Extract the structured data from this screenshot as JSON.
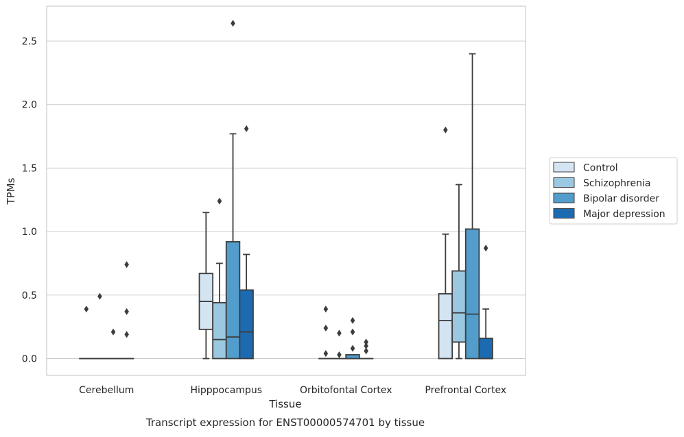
{
  "caption": "Transcript expression for ENST00000574701 by tissue",
  "chart_data": {
    "type": "box",
    "xlabel": "Tissue",
    "ylabel": "TPMs",
    "ylim": [
      -0.13,
      2.78
    ],
    "yticks": [
      0.0,
      0.5,
      1.0,
      1.5,
      2.0,
      2.5
    ],
    "ytick_labels": [
      "0.0",
      "0.5",
      "1.0",
      "1.5",
      "2.0",
      "2.5"
    ],
    "grid": "horizontal",
    "legend_position": "right",
    "categories": [
      "Cerebellum",
      "Hipppocampus",
      "Orbitofontal Cortex",
      "Prefrontal Cortex"
    ],
    "series": [
      {
        "name": "Control",
        "color": "#d3e4f3",
        "boxes": [
          {
            "whislo": 0.0,
            "q1": 0.0,
            "med": 0.0,
            "q3": 0.0,
            "whishi": 0.0,
            "fliers": [
              0.39
            ]
          },
          {
            "whislo": 0.0,
            "q1": 0.23,
            "med": 0.45,
            "q3": 0.67,
            "whishi": 1.15,
            "fliers": []
          },
          {
            "whislo": 0.0,
            "q1": 0.0,
            "med": 0.0,
            "q3": 0.0,
            "whishi": 0.0,
            "fliers": [
              0.39,
              0.24,
              0.04
            ]
          },
          {
            "whislo": 0.0,
            "q1": 0.0,
            "med": 0.3,
            "q3": 0.51,
            "whishi": 0.98,
            "fliers": [
              1.8
            ]
          }
        ]
      },
      {
        "name": "Schizophrenia",
        "color": "#9ac8e0",
        "boxes": [
          {
            "whislo": 0.0,
            "q1": 0.0,
            "med": 0.0,
            "q3": 0.0,
            "whishi": 0.0,
            "fliers": [
              0.49
            ]
          },
          {
            "whislo": 0.0,
            "q1": 0.0,
            "med": 0.15,
            "q3": 0.44,
            "whishi": 0.75,
            "fliers": [
              1.24
            ]
          },
          {
            "whislo": 0.0,
            "q1": 0.0,
            "med": 0.0,
            "q3": 0.0,
            "whishi": 0.0,
            "fliers": [
              0.2,
              0.03
            ]
          },
          {
            "whislo": 0.0,
            "q1": 0.13,
            "med": 0.36,
            "q3": 0.69,
            "whishi": 1.37,
            "fliers": []
          }
        ]
      },
      {
        "name": "Bipolar disorder",
        "color": "#529dcc",
        "boxes": [
          {
            "whislo": 0.0,
            "q1": 0.0,
            "med": 0.0,
            "q3": 0.0,
            "whishi": 0.0,
            "fliers": [
              0.21
            ]
          },
          {
            "whislo": 0.0,
            "q1": 0.0,
            "med": 0.17,
            "q3": 0.92,
            "whishi": 1.77,
            "fliers": [
              2.64
            ]
          },
          {
            "whislo": 0.0,
            "q1": 0.0,
            "med": 0.0,
            "q3": 0.03,
            "whishi": 0.03,
            "fliers": [
              0.3,
              0.21,
              0.08
            ]
          },
          {
            "whislo": 0.0,
            "q1": 0.0,
            "med": 0.35,
            "q3": 1.02,
            "whishi": 2.4,
            "fliers": []
          }
        ]
      },
      {
        "name": "Major depression",
        "color": "#1c6aaf",
        "boxes": [
          {
            "whislo": 0.0,
            "q1": 0.0,
            "med": 0.0,
            "q3": 0.0,
            "whishi": 0.0,
            "fliers": [
              0.74,
              0.37,
              0.19
            ]
          },
          {
            "whislo": 0.0,
            "q1": 0.0,
            "med": 0.21,
            "q3": 0.54,
            "whishi": 0.82,
            "fliers": [
              1.81
            ]
          },
          {
            "whislo": 0.0,
            "q1": 0.0,
            "med": 0.0,
            "q3": 0.0,
            "whishi": 0.0,
            "fliers": [
              0.13,
              0.1,
              0.06
            ]
          },
          {
            "whislo": 0.0,
            "q1": 0.0,
            "med": 0.0,
            "q3": 0.16,
            "whishi": 0.39,
            "fliers": [
              0.87
            ]
          }
        ]
      }
    ]
  }
}
